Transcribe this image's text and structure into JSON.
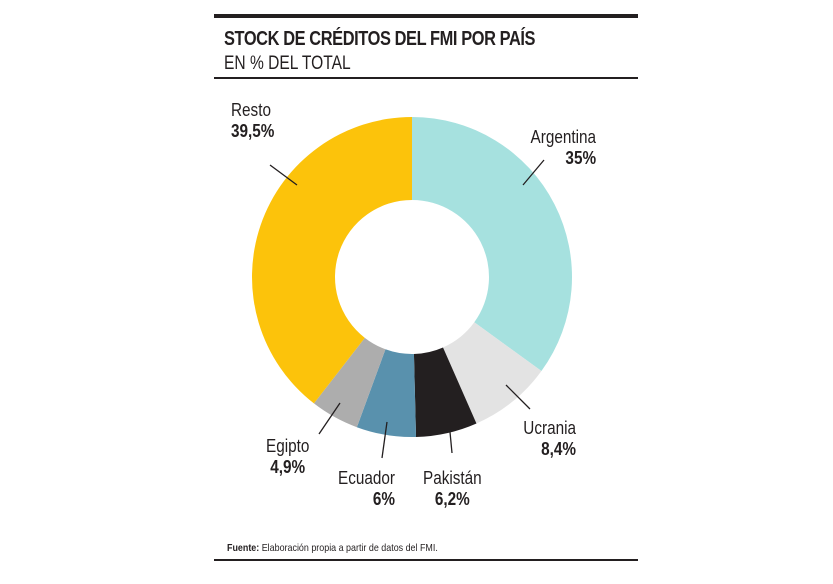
{
  "header": {
    "title": "STOCK DE CRÉDITOS DEL FMI POR PAÍS",
    "subtitle": "EN % DEL TOTAL"
  },
  "footer": {
    "source_label": "Fuente:",
    "source_text": " Elaboración propia a partir de datos del FMI."
  },
  "labels": {
    "resto": {
      "name": "Resto",
      "value": "39,5%"
    },
    "argentina": {
      "name": "Argentina",
      "value": "35%"
    },
    "ucrania": {
      "name": "Ucrania",
      "value": "8,4%"
    },
    "pakistan": {
      "name": "Pakistán",
      "value": "6,2%"
    },
    "ecuador": {
      "name": "Ecuador",
      "value": "6%"
    },
    "egipto": {
      "name": "Egipto",
      "value": "4,9%"
    }
  },
  "chart_data": {
    "type": "pie",
    "variant": "donut",
    "title": "STOCK DE CRÉDITOS DEL FMI POR PAÍS",
    "subtitle": "EN % DEL TOTAL",
    "unit": "%",
    "categories": [
      "Argentina",
      "Ucrania",
      "Pakistán",
      "Ecuador",
      "Egipto",
      "Resto"
    ],
    "values": [
      35,
      8.4,
      6.2,
      6,
      4.9,
      39.5
    ],
    "colors": [
      "#a6e1df",
      "#e3e3e3",
      "#231f20",
      "#5991ad",
      "#adadad",
      "#fcc30b"
    ],
    "start_angle_deg": 0,
    "direction": "clockwise",
    "legend": "none (direct labels)",
    "source": "Fuente: Elaboración propia a partir de datos del FMI."
  }
}
